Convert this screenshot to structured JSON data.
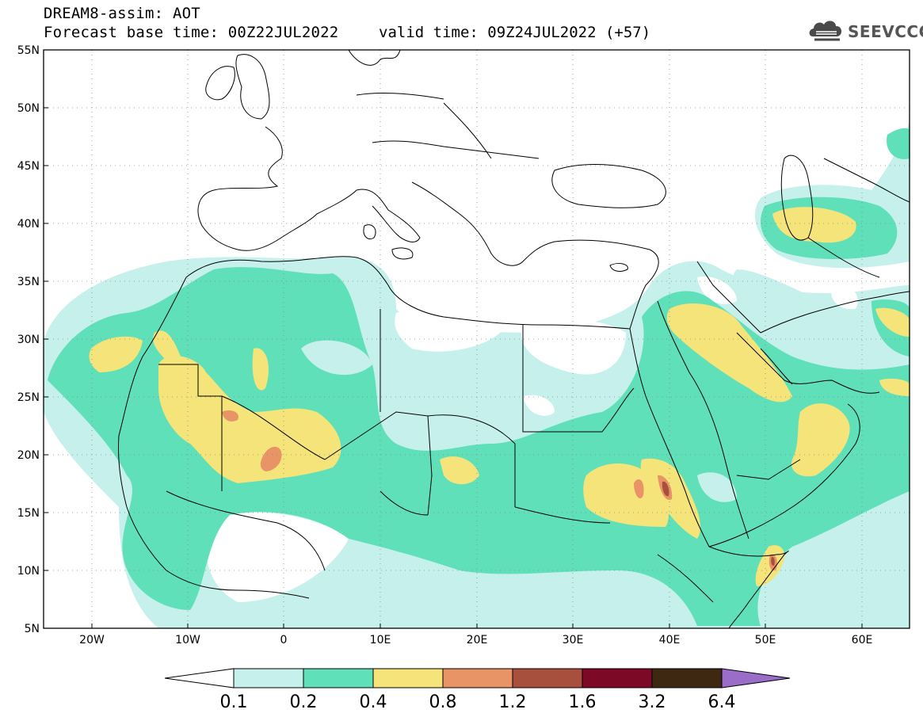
{
  "header": {
    "title": "DREAM8-assim: AOT",
    "base_time": "Forecast base time: 00Z22JUL2022",
    "valid_time": "valid time: 09Z24JUL2022 (+57)",
    "logo_text": "SEEVCCC"
  },
  "map": {
    "lat_labels": [
      "55N",
      "50N",
      "45N",
      "40N",
      "35N",
      "30N",
      "25N",
      "20N",
      "15N",
      "10N",
      "5N"
    ],
    "lon_labels": [
      "20W",
      "10W",
      "0",
      "10E",
      "20E",
      "30E",
      "40E",
      "50E",
      "60E"
    ]
  },
  "colorbar": {
    "labels": [
      "0.1",
      "0.2",
      "0.4",
      "0.8",
      "1.2",
      "1.6",
      "3.2",
      "6.4"
    ],
    "colors": [
      "#c6f0ec",
      "#5fe0b8",
      "#f4e47a",
      "#e89466",
      "#a8503e",
      "#7c0a26",
      "#3e2812",
      "#9a6ec8"
    ]
  }
}
